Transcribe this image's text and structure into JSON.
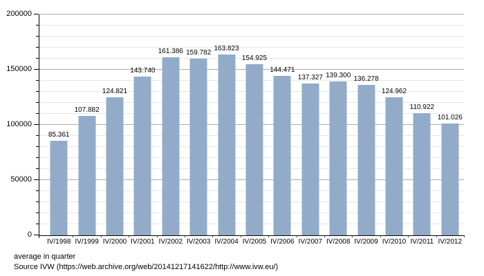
{
  "chart_data": {
    "type": "bar",
    "title": "",
    "categories": [
      "IV/1998",
      "IV/1999",
      "IV/2000",
      "IV/2001",
      "IV/2002",
      "IV/2003",
      "IV/2004",
      "IV/2005",
      "IV/2006",
      "IV/2007",
      "IV/2008",
      "IV/2009",
      "IV/2010",
      "IV/2011",
      "IV/2012"
    ],
    "values": [
      85361,
      107882,
      124821,
      143740,
      161386,
      159782,
      163823,
      154925,
      144471,
      137327,
      139300,
      136278,
      124962,
      110922,
      101026
    ],
    "value_labels": [
      "85.361",
      "107.882",
      "124.821",
      "143.740",
      "161.386",
      "159.782",
      "163.823",
      "154.925",
      "144.471",
      "137.327",
      "139.300",
      "136.278",
      "124.962",
      "110.922",
      "101.026"
    ],
    "xlabel": "",
    "ylabel": "",
    "ylim": [
      0,
      200000
    ],
    "y_major_ticks": [
      0,
      50000,
      100000,
      150000,
      200000
    ],
    "y_major_tick_labels": [
      "0",
      "50000",
      "100000",
      "150000",
      "200000"
    ],
    "y_minor_step": 10000,
    "grid": "horizontal; minor gridline every 10000 (light gray), major every 50000 (darker gray)",
    "legend": "none",
    "bar_color": "#92abc9",
    "axis_color": "#000000",
    "notes": {
      "average": "average in quarter",
      "source": "Source IVW (https://web.archive.org/web/20141217141622/http://www.ivw.eu/)"
    }
  }
}
